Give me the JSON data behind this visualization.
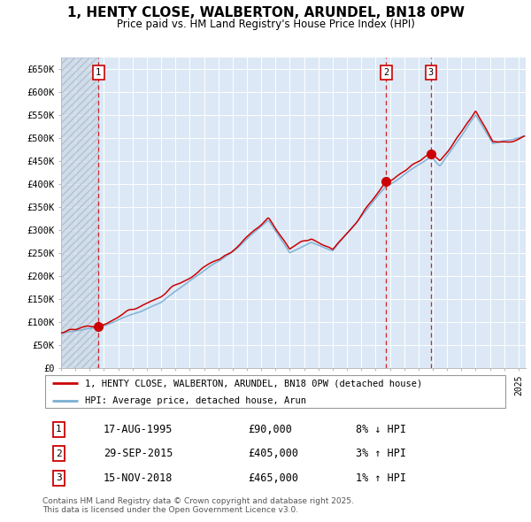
{
  "title": "1, HENTY CLOSE, WALBERTON, ARUNDEL, BN18 0PW",
  "subtitle": "Price paid vs. HM Land Registry's House Price Index (HPI)",
  "ylim": [
    0,
    675000
  ],
  "yticks": [
    0,
    50000,
    100000,
    150000,
    200000,
    250000,
    300000,
    350000,
    400000,
    450000,
    500000,
    550000,
    600000,
    650000
  ],
  "ytick_labels": [
    "£0",
    "£50K",
    "£100K",
    "£150K",
    "£200K",
    "£250K",
    "£300K",
    "£350K",
    "£400K",
    "£450K",
    "£500K",
    "£550K",
    "£600K",
    "£650K"
  ],
  "xlim_start": 1993.0,
  "xlim_end": 2025.5,
  "plot_bg_color": "#dce8f5",
  "grid_color": "#ffffff",
  "transactions": [
    {
      "num": 1,
      "date": "17-AUG-1995",
      "date_x": 1995.62,
      "price": 90000,
      "pct": "8%",
      "dir": "↓",
      "label": "1"
    },
    {
      "num": 2,
      "date": "29-SEP-2015",
      "date_x": 2015.75,
      "price": 405000,
      "pct": "3%",
      "dir": "↑",
      "label": "2"
    },
    {
      "num": 3,
      "date": "15-NOV-2018",
      "date_x": 2018.87,
      "price": 465000,
      "pct": "1%",
      "dir": "↑",
      "label": "3"
    }
  ],
  "legend_entries": [
    "1, HENTY CLOSE, WALBERTON, ARUNDEL, BN18 0PW (detached house)",
    "HPI: Average price, detached house, Arun"
  ],
  "footer": "Contains HM Land Registry data © Crown copyright and database right 2025.\nThis data is licensed under the Open Government Licence v3.0.",
  "line_color_red": "#cc0000",
  "line_color_blue": "#7bafd4",
  "marker_color": "#cc0000",
  "hatch_end_x": 1995.62
}
